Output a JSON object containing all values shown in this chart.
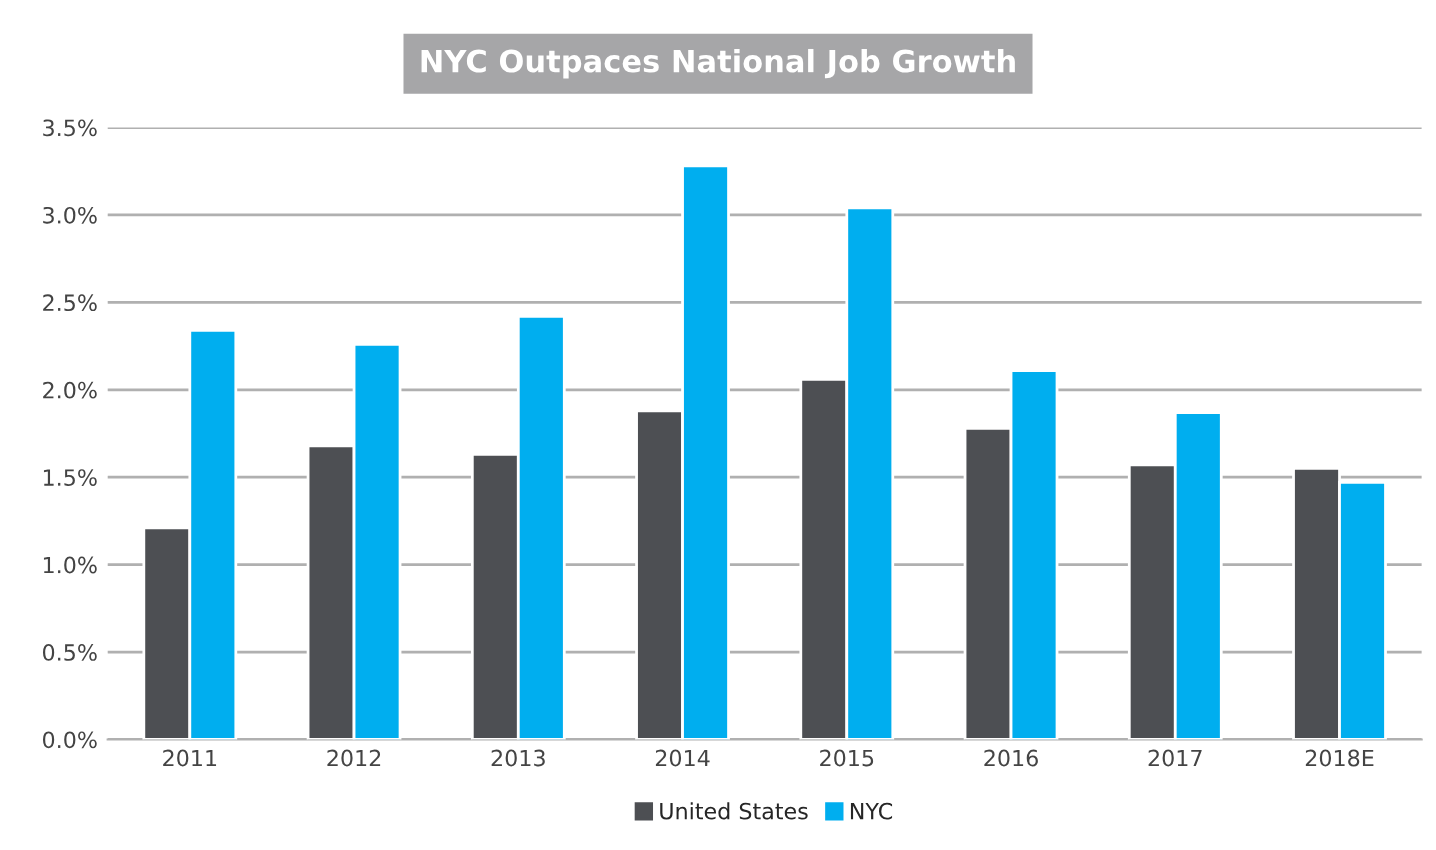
{
  "chart_data": {
    "type": "bar",
    "title": "NYC Outpaces National Job Growth",
    "categories": [
      "2011",
      "2012",
      "2013",
      "2014",
      "2015",
      "2016",
      "2017",
      "2018E"
    ],
    "series": [
      {
        "name": "United States",
        "color": "#4d4f53",
        "values": [
          1.21,
          1.68,
          1.63,
          1.88,
          2.06,
          1.78,
          1.57,
          1.55
        ]
      },
      {
        "name": "NYC",
        "color": "#00aeef",
        "values": [
          2.34,
          2.26,
          2.42,
          3.28,
          3.04,
          2.11,
          1.87,
          1.47
        ]
      }
    ],
    "ylim": [
      0,
      3.5
    ],
    "yticks": [
      {
        "value": 0,
        "label": "0.0%"
      },
      {
        "value": 0.5,
        "label": "0.5%"
      },
      {
        "value": 1,
        "label": "1.0%"
      },
      {
        "value": 1.5,
        "label": "1.5%"
      },
      {
        "value": 2,
        "label": "2.0%"
      },
      {
        "value": 2.5,
        "label": "2.5%"
      },
      {
        "value": 3,
        "label": "3.0%"
      },
      {
        "value": 3.5,
        "label": "3.5%"
      }
    ],
    "grid": "y",
    "legend": "bottom"
  }
}
